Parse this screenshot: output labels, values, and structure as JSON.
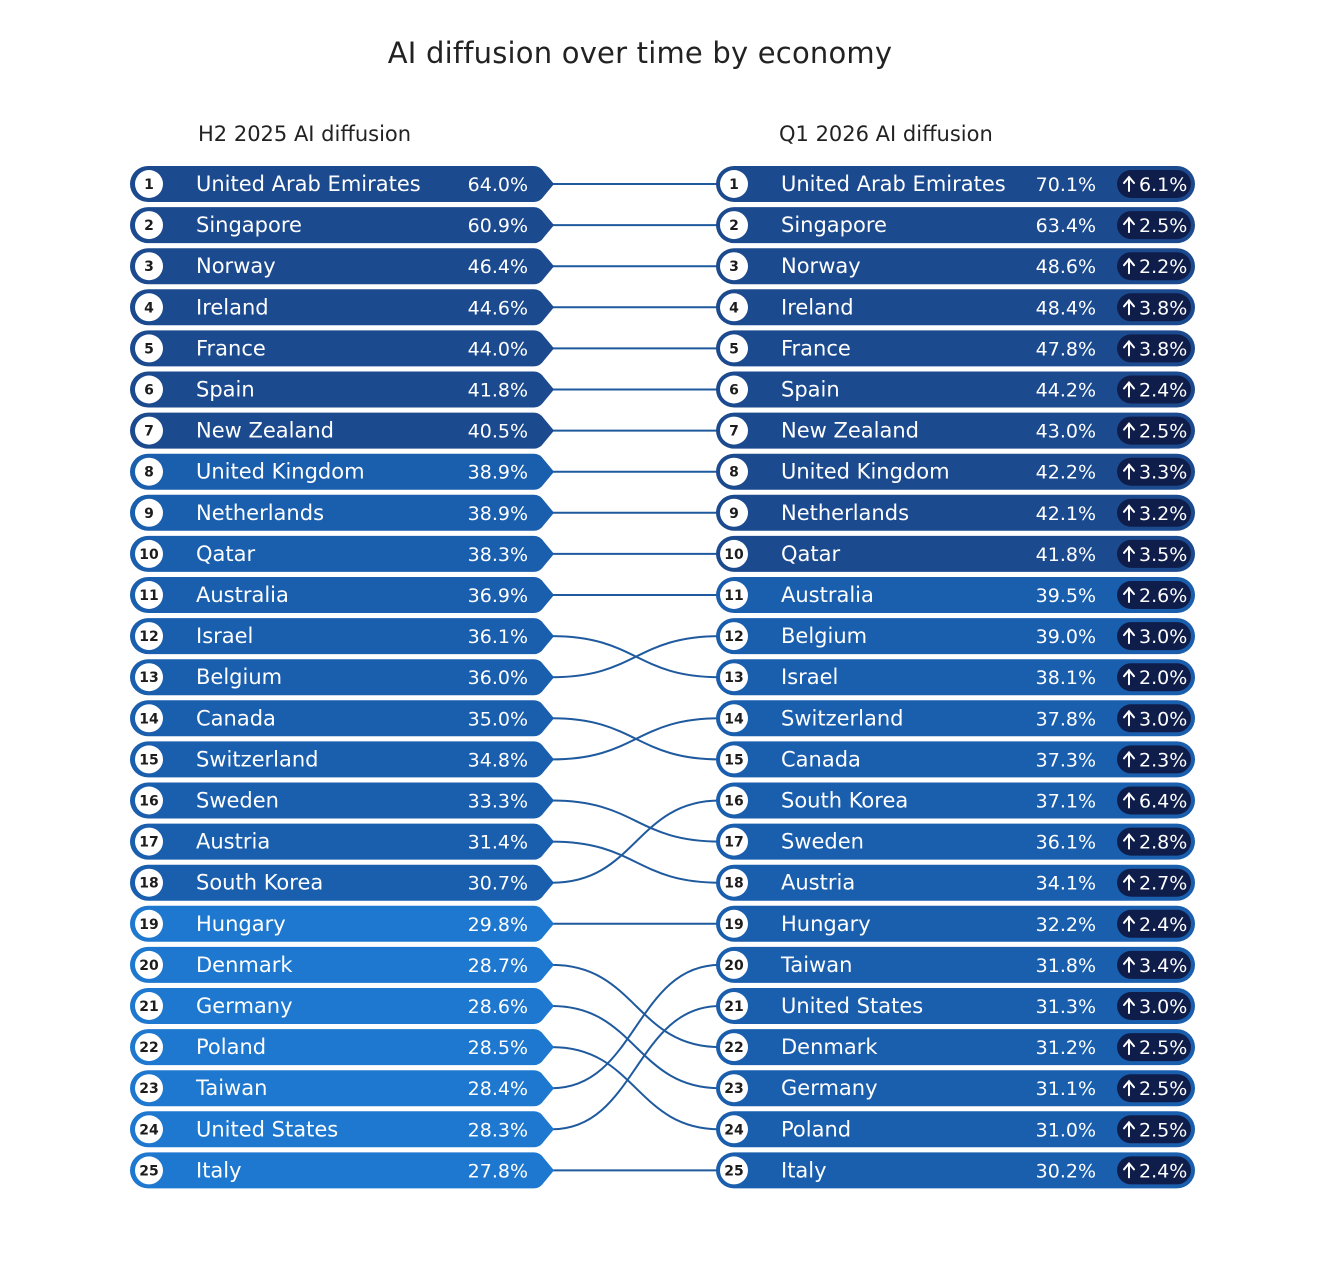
{
  "title": "AI diffusion over time by economy",
  "left_header": "H2 2025 AI diffusion",
  "right_header": "Q1 2026 AI diffusion",
  "colors": {
    "tier_dark": "#1c4a8f",
    "tier_mid": "#1a5eae",
    "tier_light": "#1e78cf",
    "delta_pill": "#0f1d4a",
    "connector": "#1f5a9e",
    "rank_circle": "#ffffff"
  },
  "chart_data": {
    "type": "table",
    "left": [
      {
        "rank": "1",
        "economy": "United Arab Emirates",
        "value": "64.0%"
      },
      {
        "rank": "2",
        "economy": "Singapore",
        "value": "60.9%"
      },
      {
        "rank": "3",
        "economy": "Norway",
        "value": "46.4%"
      },
      {
        "rank": "4",
        "economy": "Ireland",
        "value": "44.6%"
      },
      {
        "rank": "5",
        "economy": "France",
        "value": "44.0%"
      },
      {
        "rank": "6",
        "economy": "Spain",
        "value": "41.8%"
      },
      {
        "rank": "7",
        "economy": "New Zealand",
        "value": "40.5%"
      },
      {
        "rank": "8",
        "economy": "United Kingdom",
        "value": "38.9%"
      },
      {
        "rank": "9",
        "economy": "Netherlands",
        "value": "38.9%"
      },
      {
        "rank": "10",
        "economy": "Qatar",
        "value": "38.3%"
      },
      {
        "rank": "11",
        "economy": "Australia",
        "value": "36.9%"
      },
      {
        "rank": "12",
        "economy": "Israel",
        "value": "36.1%"
      },
      {
        "rank": "13",
        "economy": "Belgium",
        "value": "36.0%"
      },
      {
        "rank": "14",
        "economy": "Canada",
        "value": "35.0%"
      },
      {
        "rank": "15",
        "economy": "Switzerland",
        "value": "34.8%"
      },
      {
        "rank": "16",
        "economy": "Sweden",
        "value": "33.3%"
      },
      {
        "rank": "17",
        "economy": "Austria",
        "value": "31.4%"
      },
      {
        "rank": "18",
        "economy": "South Korea",
        "value": "30.7%"
      },
      {
        "rank": "19",
        "economy": "Hungary",
        "value": "29.8%"
      },
      {
        "rank": "20",
        "economy": "Denmark",
        "value": "28.7%"
      },
      {
        "rank": "21",
        "economy": "Germany",
        "value": "28.6%"
      },
      {
        "rank": "22",
        "economy": "Poland",
        "value": "28.5%"
      },
      {
        "rank": "23",
        "economy": "Taiwan",
        "value": "28.4%"
      },
      {
        "rank": "24",
        "economy": "United States",
        "value": "28.3%"
      },
      {
        "rank": "25",
        "economy": "Italy",
        "value": "27.8%"
      }
    ],
    "right": [
      {
        "rank": "1",
        "economy": "United Arab Emirates",
        "value": "70.1%",
        "change": "6.1%"
      },
      {
        "rank": "2",
        "economy": "Singapore",
        "value": "63.4%",
        "change": "2.5%"
      },
      {
        "rank": "3",
        "economy": "Norway",
        "value": "48.6%",
        "change": "2.2%"
      },
      {
        "rank": "4",
        "economy": "Ireland",
        "value": "48.4%",
        "change": "3.8%"
      },
      {
        "rank": "5",
        "economy": "France",
        "value": "47.8%",
        "change": "3.8%"
      },
      {
        "rank": "6",
        "economy": "Spain",
        "value": "44.2%",
        "change": "2.4%"
      },
      {
        "rank": "7",
        "economy": "New Zealand",
        "value": "43.0%",
        "change": "2.5%"
      },
      {
        "rank": "8",
        "economy": "United Kingdom",
        "value": "42.2%",
        "change": "3.3%"
      },
      {
        "rank": "9",
        "economy": "Netherlands",
        "value": "42.1%",
        "change": "3.2%"
      },
      {
        "rank": "10",
        "economy": "Qatar",
        "value": "41.8%",
        "change": "3.5%"
      },
      {
        "rank": "11",
        "economy": "Australia",
        "value": "39.5%",
        "change": "2.6%"
      },
      {
        "rank": "12",
        "economy": "Belgium",
        "value": "39.0%",
        "change": "3.0%"
      },
      {
        "rank": "13",
        "economy": "Israel",
        "value": "38.1%",
        "change": "2.0%"
      },
      {
        "rank": "14",
        "economy": "Switzerland",
        "value": "37.8%",
        "change": "3.0%"
      },
      {
        "rank": "15",
        "economy": "Canada",
        "value": "37.3%",
        "change": "2.3%"
      },
      {
        "rank": "16",
        "economy": "South Korea",
        "value": "37.1%",
        "change": "6.4%"
      },
      {
        "rank": "17",
        "economy": "Sweden",
        "value": "36.1%",
        "change": "2.8%"
      },
      {
        "rank": "18",
        "economy": "Austria",
        "value": "34.1%",
        "change": "2.7%"
      },
      {
        "rank": "19",
        "economy": "Hungary",
        "value": "32.2%",
        "change": "2.4%"
      },
      {
        "rank": "20",
        "economy": "Taiwan",
        "value": "31.8%",
        "change": "3.4%"
      },
      {
        "rank": "21",
        "economy": "United States",
        "value": "31.3%",
        "change": "3.0%"
      },
      {
        "rank": "22",
        "economy": "Denmark",
        "value": "31.2%",
        "change": "2.5%"
      },
      {
        "rank": "23",
        "economy": "Germany",
        "value": "31.1%",
        "change": "2.5%"
      },
      {
        "rank": "24",
        "economy": "Poland",
        "value": "31.0%",
        "change": "2.5%"
      },
      {
        "rank": "25",
        "economy": "Italy",
        "value": "30.2%",
        "change": "2.4%"
      }
    ]
  }
}
